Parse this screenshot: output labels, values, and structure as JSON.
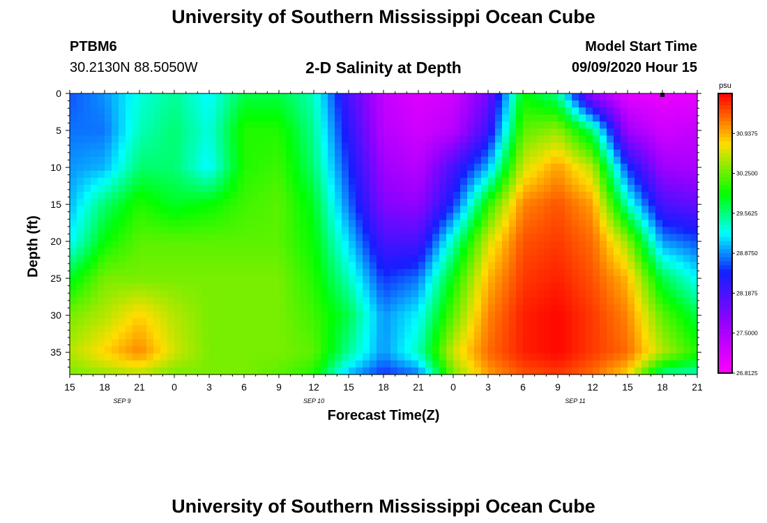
{
  "page": {
    "title_top": "University of Southern Mississippi Ocean Cube",
    "title_bottom": "University of Southern Mississippi Ocean Cube",
    "station_id": "PTBM6",
    "coords": "30.2130N 88.5050W",
    "subtitle": "2-D Salinity at Depth",
    "model_start_label": "Model Start Time",
    "model_start_value": "09/09/2020 Hour 15"
  },
  "chart_data": {
    "type": "heatmap",
    "title": "2-D Salinity at Depth",
    "xlabel": "Forecast Time(Z)",
    "ylabel": "Depth (ft)",
    "x_range_hours": [
      0,
      54
    ],
    "y_range_ft": [
      0,
      38
    ],
    "x_tick_labels": [
      "15",
      "18",
      "21",
      "0",
      "3",
      "6",
      "9",
      "12",
      "15",
      "18",
      "21",
      "0",
      "3",
      "6",
      "9",
      "12",
      "15",
      "18",
      "21"
    ],
    "y_ticks": [
      0,
      5,
      10,
      15,
      20,
      25,
      30,
      35
    ],
    "day_labels": [
      {
        "label": "SEP 9",
        "hour": 4.5
      },
      {
        "label": "SEP 10",
        "hour": 21
      },
      {
        "label": "SEP 11",
        "hour": 43.5
      }
    ],
    "colorbar": {
      "unit": "psu",
      "min": 26.8125,
      "max": 31.625,
      "tick_labels": [
        "30.9375",
        "30.2500",
        "29.5625",
        "28.8750",
        "28.1875",
        "27.5000",
        "26.8125"
      ]
    },
    "marker": {
      "hour": 51,
      "depth_ft": 0
    },
    "salinity_grid": {
      "hours": [
        0,
        3,
        6,
        9,
        12,
        15,
        18,
        21,
        24,
        27,
        30,
        33,
        36,
        39,
        42,
        45,
        48,
        51,
        54
      ],
      "depths_ft": [
        0,
        5,
        10,
        15,
        20,
        25,
        30,
        35,
        38
      ],
      "values": [
        [
          28.7,
          28.9,
          29.3,
          29.5,
          29.2,
          29.7,
          29.7,
          29.4,
          28.2,
          27.3,
          27.1,
          27.2,
          27.9,
          29.9,
          29.5,
          27.6,
          27.0,
          27.0,
          27.0
        ],
        [
          28.8,
          28.8,
          29.4,
          29.6,
          29.3,
          30.0,
          30.0,
          29.5,
          28.4,
          27.4,
          27.2,
          27.4,
          28.3,
          30.2,
          30.4,
          29.6,
          27.6,
          27.2,
          27.3
        ],
        [
          28.9,
          29.0,
          29.6,
          29.6,
          29.2,
          30.0,
          30.1,
          29.6,
          28.6,
          27.6,
          27.4,
          28.2,
          29.0,
          30.6,
          31.0,
          30.5,
          28.6,
          27.6,
          27.5
        ],
        [
          29.0,
          29.6,
          30.0,
          29.8,
          29.9,
          30.1,
          30.2,
          29.8,
          28.8,
          27.8,
          27.7,
          28.6,
          30.0,
          31.1,
          31.3,
          31.0,
          29.4,
          28.2,
          28.0
        ],
        [
          29.2,
          29.9,
          30.2,
          30.2,
          30.2,
          30.2,
          30.2,
          29.9,
          29.1,
          28.2,
          28.2,
          29.4,
          30.6,
          31.3,
          31.4,
          31.2,
          30.4,
          28.9,
          28.7
        ],
        [
          29.8,
          30.3,
          30.3,
          30.3,
          30.3,
          30.3,
          30.3,
          30.0,
          29.4,
          28.6,
          28.8,
          29.9,
          30.9,
          31.4,
          31.5,
          31.3,
          30.9,
          29.7,
          29.2
        ],
        [
          30.3,
          30.5,
          30.8,
          30.5,
          30.3,
          30.3,
          30.3,
          30.1,
          29.7,
          28.9,
          29.2,
          30.2,
          31.1,
          31.5,
          31.6,
          31.4,
          31.1,
          30.2,
          29.7
        ],
        [
          30.5,
          30.8,
          31.1,
          30.6,
          30.3,
          30.3,
          30.3,
          30.2,
          29.5,
          28.9,
          29.4,
          30.6,
          31.2,
          31.5,
          31.6,
          31.4,
          31.2,
          30.5,
          30.0
        ],
        [
          30.3,
          30.4,
          30.5,
          30.3,
          30.3,
          30.3,
          30.2,
          30.0,
          29.0,
          28.6,
          28.8,
          30.3,
          31.0,
          31.3,
          31.4,
          31.2,
          30.8,
          29.5,
          29.4
        ]
      ]
    }
  }
}
